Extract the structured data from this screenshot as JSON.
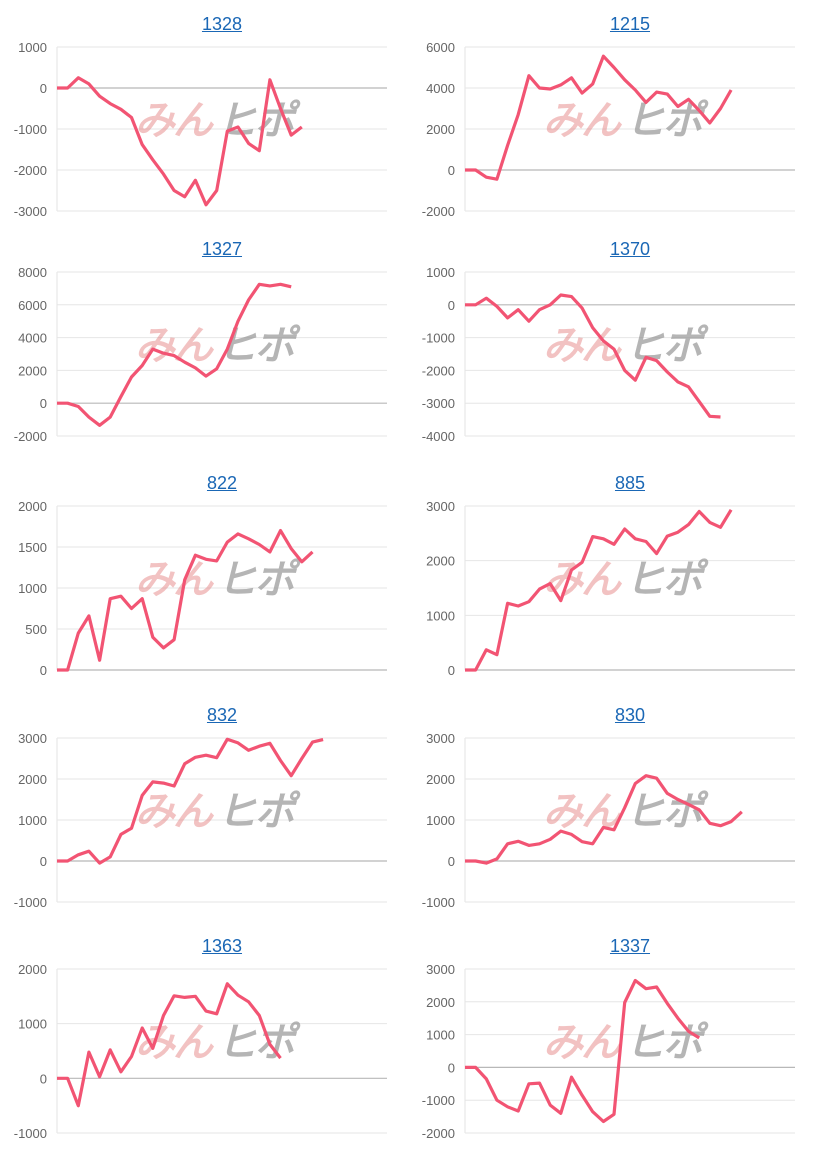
{
  "watermark": {
    "part1": "みん",
    "part2": "ヒポ"
  },
  "line_color": "#f25473",
  "chart_data": [
    {
      "type": "line",
      "title": "1328",
      "ylim": [
        -3000,
        1000
      ],
      "y_ticks": [
        1000,
        0,
        -1000,
        -2000,
        -3000
      ],
      "values": [
        0,
        0,
        250,
        100,
        -200,
        -380,
        -520,
        -720,
        -1380,
        -1750,
        -2100,
        -2500,
        -2650,
        -2250,
        -2850,
        -2500,
        -1050,
        -950,
        -1350,
        -1530,
        200,
        -500,
        -1150,
        -950
      ]
    },
    {
      "type": "line",
      "title": "1215",
      "ylim": [
        -2000,
        6000
      ],
      "y_ticks": [
        6000,
        4000,
        2000,
        0,
        -2000
      ],
      "values": [
        0,
        0,
        -350,
        -450,
        1200,
        2700,
        4600,
        4000,
        3950,
        4150,
        4500,
        3750,
        4200,
        5550,
        5000,
        4400,
        3900,
        3300,
        3800,
        3700,
        3100,
        3450,
        2900,
        2300,
        3000,
        3900
      ]
    },
    {
      "type": "line",
      "title": "1327",
      "ylim": [
        -2000,
        8000
      ],
      "y_ticks": [
        8000,
        6000,
        4000,
        2000,
        0,
        -2000
      ],
      "values": [
        0,
        0,
        -200,
        -850,
        -1350,
        -850,
        400,
        1600,
        2300,
        3300,
        3050,
        2900,
        2500,
        2150,
        1650,
        2100,
        3300,
        5000,
        6300,
        7250,
        7150,
        7250,
        7100
      ]
    },
    {
      "type": "line",
      "title": "1370",
      "ylim": [
        -4000,
        1000
      ],
      "y_ticks": [
        1000,
        0,
        -1000,
        -2000,
        -3000,
        -4000
      ],
      "values": [
        0,
        0,
        200,
        -50,
        -400,
        -150,
        -500,
        -150,
        0,
        300,
        250,
        -100,
        -700,
        -1100,
        -1350,
        -2000,
        -2300,
        -1600,
        -1700,
        -2050,
        -2350,
        -2500,
        -2950,
        -3400,
        -3420
      ]
    },
    {
      "type": "line",
      "title": "822",
      "ylim": [
        0,
        2000
      ],
      "y_ticks": [
        2000,
        1500,
        1000,
        500,
        0
      ],
      "values": [
        0,
        0,
        450,
        660,
        120,
        870,
        900,
        750,
        870,
        400,
        270,
        370,
        1100,
        1400,
        1350,
        1330,
        1560,
        1660,
        1600,
        1530,
        1440,
        1700,
        1480,
        1320,
        1440
      ]
    },
    {
      "type": "line",
      "title": "885",
      "ylim": [
        0,
        3000
      ],
      "y_ticks": [
        3000,
        2000,
        1000,
        0
      ],
      "values": [
        0,
        0,
        370,
        280,
        1220,
        1170,
        1250,
        1480,
        1580,
        1270,
        1830,
        1970,
        2440,
        2400,
        2300,
        2580,
        2400,
        2350,
        2130,
        2450,
        2520,
        2660,
        2900,
        2700,
        2610,
        2930
      ]
    },
    {
      "type": "line",
      "title": "832",
      "ylim": [
        -1000,
        3000
      ],
      "y_ticks": [
        3000,
        2000,
        1000,
        0,
        -1000
      ],
      "values": [
        0,
        0,
        150,
        240,
        -50,
        100,
        650,
        800,
        1600,
        1930,
        1900,
        1830,
        2370,
        2530,
        2580,
        2520,
        2970,
        2880,
        2700,
        2800,
        2870,
        2450,
        2080,
        2500,
        2900,
        2960
      ]
    },
    {
      "type": "line",
      "title": "830",
      "ylim": [
        -1000,
        3000
      ],
      "y_ticks": [
        3000,
        2000,
        1000,
        0,
        -1000
      ],
      "values": [
        0,
        0,
        -50,
        50,
        420,
        480,
        380,
        420,
        530,
        730,
        650,
        470,
        420,
        820,
        760,
        1300,
        1890,
        2080,
        2020,
        1650,
        1500,
        1380,
        1250,
        920,
        860,
        960,
        1200
      ]
    },
    {
      "type": "line",
      "title": "1363",
      "ylim": [
        -1000,
        2000
      ],
      "y_ticks": [
        2000,
        1000,
        0,
        -1000
      ],
      "values": [
        0,
        0,
        -500,
        480,
        30,
        520,
        120,
        400,
        920,
        550,
        1150,
        1510,
        1480,
        1500,
        1230,
        1180,
        1730,
        1520,
        1400,
        1150,
        620,
        370
      ]
    },
    {
      "type": "line",
      "title": "1337",
      "ylim": [
        -2000,
        3000
      ],
      "y_ticks": [
        3000,
        2000,
        1000,
        0,
        -1000,
        -2000
      ],
      "values": [
        0,
        0,
        -350,
        -1000,
        -1200,
        -1330,
        -500,
        -480,
        -1150,
        -1400,
        -300,
        -850,
        -1350,
        -1650,
        -1430,
        1980,
        2650,
        2400,
        2450,
        1950,
        1500,
        1100,
        900
      ]
    }
  ]
}
